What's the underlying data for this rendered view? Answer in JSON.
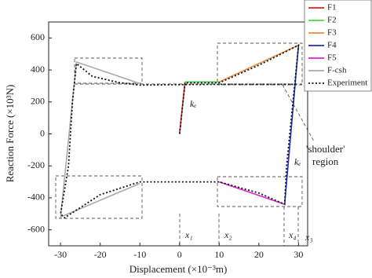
{
  "chart_data": {
    "type": "line",
    "x_label": "Displacement (×10⁻³m)",
    "y_label": "Reaction Force (×10³N)",
    "xlim": [
      -33,
      32.3
    ],
    "xticks": [
      -30,
      -20,
      -10,
      0,
      10,
      20,
      30
    ],
    "ylim": [
      -700,
      700
    ],
    "yticks": [
      -600,
      -400,
      -200,
      0,
      200,
      400,
      600
    ],
    "legend": "upper right",
    "series": [
      {
        "name": "F1",
        "color": "#e0201b",
        "dash": "solid",
        "x": [
          0,
          1.4
        ],
        "values": [
          0,
          325
        ]
      },
      {
        "name": "F2",
        "color": "#44dd44",
        "dash": "solid",
        "x": [
          1.4,
          10
        ],
        "values": [
          325,
          325
        ]
      },
      {
        "name": "F3",
        "color": "#f08a3a",
        "dash": "solid",
        "x": [
          10,
          30
        ],
        "values": [
          325,
          555
        ]
      },
      {
        "name": "F4",
        "color": "#1a33b5",
        "dash": "solid",
        "x": [
          30,
          26.5
        ],
        "values": [
          555,
          -440
        ]
      },
      {
        "name": "F5",
        "color": "#e020d0",
        "dash": "solid",
        "x": [
          10,
          26.5
        ],
        "values": [
          -300,
          -440
        ]
      },
      {
        "name": "F-csh",
        "color": "#aaaaaa",
        "dash": "solid",
        "x": [
          -10,
          -26,
          -30,
          -10
        ],
        "values": [
          315,
          450,
          -520,
          -310
        ]
      },
      {
        "name": "Experiment",
        "color": "#111111",
        "dash": "dotted",
        "x": [
          0,
          1.4,
          10,
          20,
          30,
          29,
          27,
          26.5,
          20,
          10,
          -10,
          -20,
          -29,
          -30,
          -28,
          -27,
          -26,
          -22,
          -15,
          -10,
          0,
          10,
          30
        ],
        "values": [
          0,
          320,
          320,
          430,
          555,
          300,
          -200,
          -440,
          -370,
          -300,
          -300,
          -380,
          -525,
          -500,
          -200,
          200,
          440,
          360,
          320,
          305,
          308,
          310,
          310
        ]
      }
    ],
    "annotations": [
      "kₑ",
      "kₑ",
      "'shoulder'",
      "region",
      "x₁",
      "x₂",
      "x₄",
      "x₃"
    ]
  }
}
